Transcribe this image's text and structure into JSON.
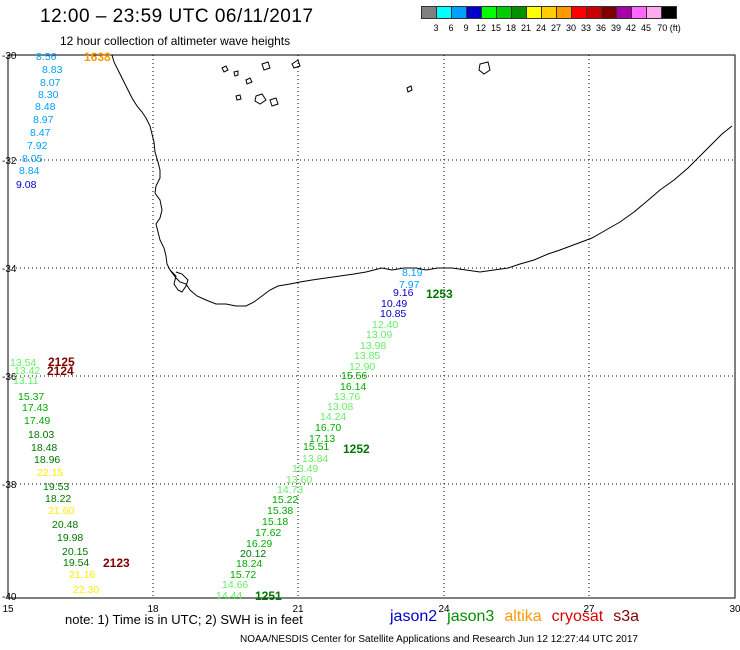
{
  "header": {
    "title": "12:00 – 23:59 UTC 06/11/2017",
    "subtitle": "12 hour collection of altimeter wave heights"
  },
  "legend": {
    "colors": [
      "#808080",
      "#00ffff",
      "#00a0ff",
      "#0000cc",
      "#00ff00",
      "#00cc00",
      "#009000",
      "#ffff00",
      "#ffcc00",
      "#ff9900",
      "#ff0000",
      "#cc0000",
      "#800000",
      "#aa00aa",
      "#ff66ff",
      "#ffaaee",
      "#000000"
    ],
    "labels": [
      "3",
      "6",
      "9",
      "12",
      "15",
      "18",
      "21",
      "24",
      "27",
      "30",
      "33",
      "36",
      "39",
      "42",
      "45",
      "70 (ft)"
    ]
  },
  "axes": {
    "lon_labels": [
      "15",
      "18",
      "21",
      "24",
      "27",
      "30"
    ],
    "lat_labels": [
      "-30",
      "-32",
      "-34",
      "-36",
      "-38",
      "-40"
    ]
  },
  "passes": [
    {
      "label": "1638",
      "color": "#ff9900"
    },
    {
      "label": "1253",
      "color": "#007700"
    },
    {
      "label": "2125",
      "color": "#800000"
    },
    {
      "label": "2124",
      "color": "#800000"
    },
    {
      "label": "1252",
      "color": "#007700"
    },
    {
      "label": "2123",
      "color": "#800000"
    },
    {
      "label": "1251",
      "color": "#007700"
    }
  ],
  "observations": [
    {
      "v": "8.56",
      "c": "#00a0ff"
    },
    {
      "v": "8.83",
      "c": "#00a0ff"
    },
    {
      "v": "8.07",
      "c": "#00a0ff"
    },
    {
      "v": "8.30",
      "c": "#00a0ff"
    },
    {
      "v": "8.48",
      "c": "#00a0ff"
    },
    {
      "v": "8.97",
      "c": "#00a0ff"
    },
    {
      "v": "8.47",
      "c": "#00a0ff"
    },
    {
      "v": "7.92",
      "c": "#00a0ff"
    },
    {
      "v": "8.05",
      "c": "#00a0ff"
    },
    {
      "v": "8.84",
      "c": "#00a0ff"
    },
    {
      "v": "9.08",
      "c": "#0000cc"
    },
    {
      "v": "8.19",
      "c": "#00a0ff"
    },
    {
      "v": "7.97",
      "c": "#00a0ff"
    },
    {
      "v": "9.16",
      "c": "#0000cc"
    },
    {
      "v": "10.49",
      "c": "#0000cc"
    },
    {
      "v": "10.85",
      "c": "#0000cc"
    },
    {
      "v": "12.40",
      "c": "#66ee66"
    },
    {
      "v": "13.09",
      "c": "#66ee66"
    },
    {
      "v": "13.98",
      "c": "#66ee66"
    },
    {
      "v": "13.85",
      "c": "#66ee66"
    },
    {
      "v": "12.90",
      "c": "#66ee66"
    },
    {
      "v": "15.56",
      "c": "#00aa00"
    },
    {
      "v": "16.14",
      "c": "#00aa00"
    },
    {
      "v": "13.76",
      "c": "#66ee66"
    },
    {
      "v": "13.08",
      "c": "#66ee66"
    },
    {
      "v": "14.24",
      "c": "#66ee66"
    },
    {
      "v": "16.70",
      "c": "#00aa00"
    },
    {
      "v": "17.13",
      "c": "#00aa00"
    },
    {
      "v": "15.51",
      "c": "#00aa00"
    },
    {
      "v": "13.84",
      "c": "#66ee66"
    },
    {
      "v": "13.49",
      "c": "#66ee66"
    },
    {
      "v": "13.60",
      "c": "#66ee66"
    },
    {
      "v": "14.73",
      "c": "#66ee66"
    },
    {
      "v": "15.22",
      "c": "#00aa00"
    },
    {
      "v": "15.38",
      "c": "#00aa00"
    },
    {
      "v": "15.18",
      "c": "#00aa00"
    },
    {
      "v": "17.62",
      "c": "#00aa00"
    },
    {
      "v": "16.29",
      "c": "#00aa00"
    },
    {
      "v": "20.12",
      "c": "#007700"
    },
    {
      "v": "18.24",
      "c": "#00aa00"
    },
    {
      "v": "15.72",
      "c": "#00aa00"
    },
    {
      "v": "14.66",
      "c": "#66ee66"
    },
    {
      "v": "14.44",
      "c": "#66ee66"
    },
    {
      "v": "13.54",
      "c": "#66ee66"
    },
    {
      "v": "13.42",
      "c": "#66ee66"
    },
    {
      "v": "13.11",
      "c": "#66ee66"
    },
    {
      "v": "15.37",
      "c": "#00aa00"
    },
    {
      "v": "17.43",
      "c": "#00aa00"
    },
    {
      "v": "17.49",
      "c": "#00aa00"
    },
    {
      "v": "18.03",
      "c": "#007700"
    },
    {
      "v": "18.48",
      "c": "#007700"
    },
    {
      "v": "18.96",
      "c": "#007700"
    },
    {
      "v": "22.15",
      "c": "#ffee00"
    },
    {
      "v": "19.53",
      "c": "#007700"
    },
    {
      "v": "18.22",
      "c": "#007700"
    },
    {
      "v": "21.60",
      "c": "#ffee00"
    },
    {
      "v": "20.48",
      "c": "#007700"
    },
    {
      "v": "19.98",
      "c": "#007700"
    },
    {
      "v": "20.15",
      "c": "#007700"
    },
    {
      "v": "19.54",
      "c": "#007700"
    },
    {
      "v": "21.16",
      "c": "#ffee00"
    },
    {
      "v": "22.30",
      "c": "#ffee00"
    }
  ],
  "footer": {
    "note": "note:  1) Time is in UTC;  2) SWH is in feet",
    "satellites": [
      {
        "name": "jason2",
        "color": "#0000cc"
      },
      {
        "name": "jason3",
        "color": "#009000"
      },
      {
        "name": "altika",
        "color": "#ff9900"
      },
      {
        "name": "cryosat",
        "color": "#dd0000"
      },
      {
        "name": "s3a",
        "color": "#880000"
      }
    ],
    "credit": "NOAA/NESDIS Center for Satellite Applications and Research     Jun 12 12:27:44 UTC 2017"
  }
}
